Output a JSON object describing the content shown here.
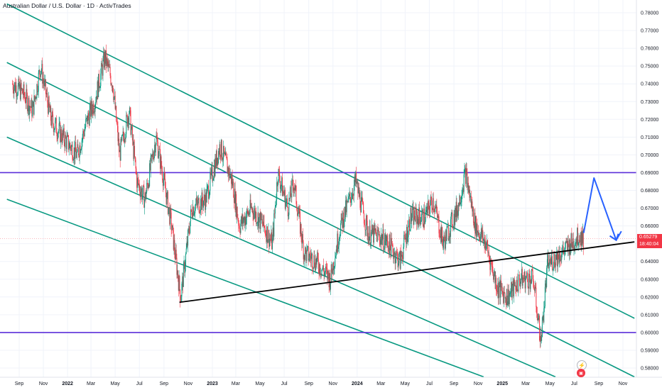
{
  "window": {
    "title": "Australian Dollar / U.S. Dollar · 1D · ActivTrades"
  },
  "colors": {
    "channel": "#089981",
    "horizontal": "#5b2fd9",
    "trendline": "#000000",
    "arrow": "#2962ff",
    "candle_up": "#089981",
    "candle_down": "#f23645",
    "price_tag": "#f23645"
  },
  "icons": [
    "lightning-icon",
    "calendar-icon"
  ],
  "chart_data": {
    "type": "candlestick",
    "title": "Australian Dollar / U.S. Dollar · 1D · ActivTrades",
    "ylim": [
      0.575,
      0.785
    ],
    "y_ticks": [
      "0.78000",
      "0.77000",
      "0.76000",
      "0.75000",
      "0.74000",
      "0.73000",
      "0.72000",
      "0.71000",
      "0.70000",
      "0.69000",
      "0.68000",
      "0.67000",
      "0.66000",
      "0.65000",
      "0.64000",
      "0.63000",
      "0.62000",
      "0.61000",
      "0.60000",
      "0.59000",
      "0.58000"
    ],
    "x_ticks": [
      "Sep",
      "Nov",
      "2022",
      "Mar",
      "May",
      "Jul",
      "Sep",
      "Nov",
      "2023",
      "Mar",
      "May",
      "Jul",
      "Sep",
      "Nov",
      "2024",
      "Mar",
      "May",
      "Jul",
      "Sep",
      "Nov",
      "2025",
      "Mar",
      "May",
      "Jul",
      "Sep",
      "Nov"
    ],
    "last_price": "0.65279",
    "countdown": "18:40:04",
    "horizontal_levels": [
      0.69,
      0.6
    ],
    "price_path": [
      [
        "2021-08-15",
        0.74
      ],
      [
        "2021-09-10",
        0.735
      ],
      [
        "2021-10-05",
        0.725
      ],
      [
        "2021-10-25",
        0.75
      ],
      [
        "2021-11-20",
        0.72
      ],
      [
        "2021-12-20",
        0.71
      ],
      [
        "2022-01-25",
        0.7
      ],
      [
        "2022-02-20",
        0.72
      ],
      [
        "2022-03-10",
        0.73
      ],
      [
        "2022-04-05",
        0.755
      ],
      [
        "2022-04-25",
        0.74
      ],
      [
        "2022-05-12",
        0.7
      ],
      [
        "2022-06-05",
        0.725
      ],
      [
        "2022-06-25",
        0.685
      ],
      [
        "2022-07-15",
        0.675
      ],
      [
        "2022-08-12",
        0.71
      ],
      [
        "2022-09-01",
        0.685
      ],
      [
        "2022-09-20",
        0.66
      ],
      [
        "2022-10-13",
        0.62
      ],
      [
        "2022-11-10",
        0.67
      ],
      [
        "2022-12-15",
        0.675
      ],
      [
        "2023-01-20",
        0.705
      ],
      [
        "2023-02-20",
        0.685
      ],
      [
        "2023-03-10",
        0.66
      ],
      [
        "2023-04-10",
        0.67
      ],
      [
        "2023-05-10",
        0.66
      ],
      [
        "2023-06-01",
        0.65
      ],
      [
        "2023-06-15",
        0.69
      ],
      [
        "2023-07-10",
        0.67
      ],
      [
        "2023-07-25",
        0.685
      ],
      [
        "2023-08-20",
        0.645
      ],
      [
        "2023-09-20",
        0.64
      ],
      [
        "2023-10-25",
        0.63
      ],
      [
        "2023-11-20",
        0.66
      ],
      [
        "2023-12-28",
        0.685
      ],
      [
        "2024-01-30",
        0.655
      ],
      [
        "2024-02-20",
        0.655
      ],
      [
        "2024-03-20",
        0.65
      ],
      [
        "2024-04-18",
        0.64
      ],
      [
        "2024-05-15",
        0.665
      ],
      [
        "2024-06-20",
        0.665
      ],
      [
        "2024-07-10",
        0.675
      ],
      [
        "2024-08-05",
        0.65
      ],
      [
        "2024-09-10",
        0.67
      ],
      [
        "2024-09-30",
        0.69
      ],
      [
        "2024-10-25",
        0.66
      ],
      [
        "2024-11-20",
        0.65
      ],
      [
        "2024-12-20",
        0.625
      ],
      [
        "2025-01-15",
        0.62
      ],
      [
        "2025-02-15",
        0.63
      ],
      [
        "2025-03-20",
        0.63
      ],
      [
        "2025-04-08",
        0.595
      ],
      [
        "2025-04-25",
        0.638
      ],
      [
        "2025-05-20",
        0.643
      ],
      [
        "2025-06-15",
        0.648
      ],
      [
        "2025-07-15",
        0.655
      ],
      [
        "2025-07-25",
        0.65279
      ]
    ],
    "channel_lines": [
      {
        "points": [
          [
            "2021-08-01",
            0.785
          ],
          [
            "2025-11-30",
            0.608
          ]
        ]
      },
      {
        "points": [
          [
            "2021-08-01",
            0.752
          ],
          [
            "2025-11-30",
            0.575
          ]
        ]
      },
      {
        "points": [
          [
            "2021-08-01",
            0.71
          ],
          [
            "2025-05-15",
            0.575
          ]
        ]
      },
      {
        "points": [
          [
            "2021-08-01",
            0.675
          ],
          [
            "2024-11-15",
            0.575
          ]
        ]
      }
    ],
    "trendline": {
      "points": [
        [
          "2022-10-10",
          0.617
        ],
        [
          "2025-11-30",
          0.651
        ]
      ]
    },
    "projection_arrow": {
      "points": [
        [
          "2025-07-25",
          0.656
        ],
        [
          "2025-08-20",
          0.687
        ],
        [
          "2025-10-15",
          0.652
        ],
        [
          "2025-10-28",
          0.657
        ]
      ]
    }
  }
}
